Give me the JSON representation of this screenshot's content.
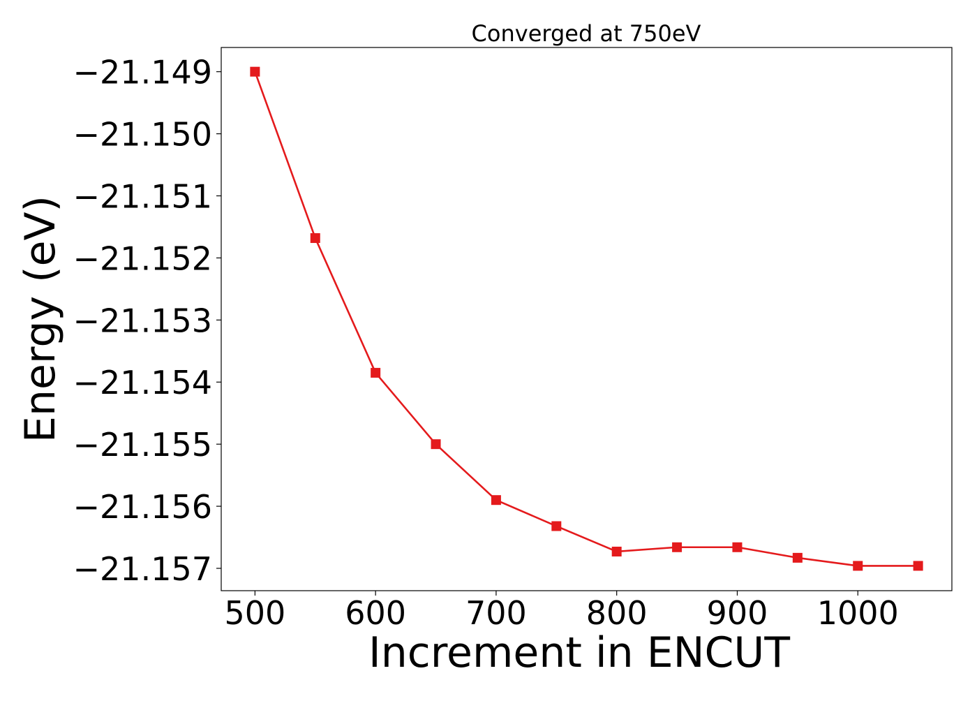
{
  "chart_data": {
    "type": "line",
    "title": "Converged at 750eV",
    "xlabel": "Increment in ENCUT",
    "ylabel": "Energy (eV)",
    "x": [
      500,
      550,
      600,
      650,
      700,
      750,
      800,
      850,
      900,
      950,
      1000,
      1050
    ],
    "series": [
      {
        "values": [
          -21.149,
          -21.15168,
          -21.15385,
          -21.155,
          -21.1559,
          -21.15632,
          -21.15673,
          -21.15666,
          -21.15666,
          -21.15683,
          -21.15696,
          -21.15696
        ],
        "color": "#e41a1c",
        "marker": "square"
      }
    ],
    "xlim": [
      472,
      1078
    ],
    "ylim": [
      -21.15736,
      -21.14861
    ],
    "xticks": [
      500,
      600,
      700,
      800,
      900,
      1000
    ],
    "xtick_labels": [
      "500",
      "600",
      "700",
      "800",
      "900",
      "1000"
    ],
    "yticks": [
      -21.149,
      -21.15,
      -21.151,
      -21.152,
      -21.153,
      -21.154,
      -21.155,
      -21.156,
      -21.157
    ],
    "ytick_labels": [
      "−21.149",
      "−21.150",
      "−21.151",
      "−21.152",
      "−21.153",
      "−21.154",
      "−21.155",
      "−21.156",
      "−21.157"
    ],
    "grid": false,
    "legend": "none"
  }
}
